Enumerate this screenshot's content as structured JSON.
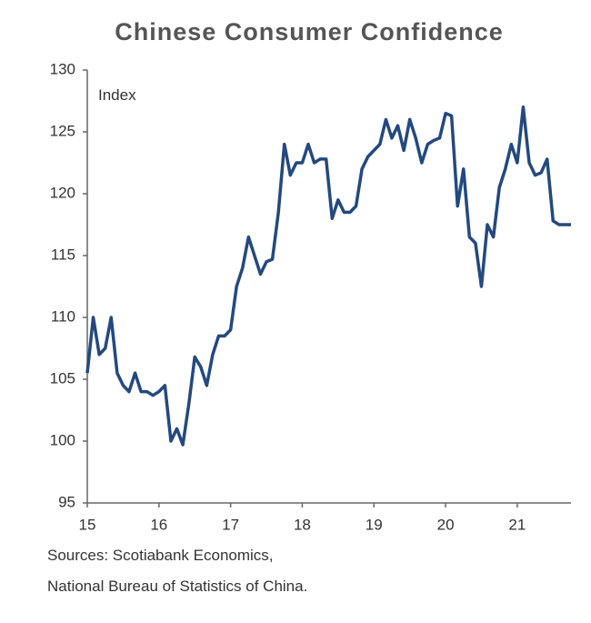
{
  "chart_data": {
    "type": "line",
    "title": "Chinese Consumer Confidence",
    "y_label": "Index",
    "sources": [
      "Sources: Scotiabank Economics,",
      "National Bureau of Statistics of China."
    ],
    "xlim": [
      15,
      21.75
    ],
    "xticks": [
      15,
      16,
      17,
      18,
      19,
      20,
      21
    ],
    "ylim": [
      95,
      130
    ],
    "yticks": [
      95,
      100,
      105,
      110,
      115,
      120,
      125,
      130
    ],
    "grid": false,
    "x": [
      15,
      15.083,
      15.167,
      15.25,
      15.333,
      15.417,
      15.5,
      15.583,
      15.667,
      15.75,
      15.833,
      15.917,
      16,
      16.083,
      16.167,
      16.25,
      16.333,
      16.417,
      16.5,
      16.583,
      16.667,
      16.75,
      16.833,
      16.917,
      17,
      17.083,
      17.167,
      17.25,
      17.333,
      17.417,
      17.5,
      17.583,
      17.667,
      17.75,
      17.833,
      17.917,
      18,
      18.083,
      18.167,
      18.25,
      18.333,
      18.417,
      18.5,
      18.583,
      18.667,
      18.75,
      18.833,
      18.917,
      19,
      19.083,
      19.167,
      19.25,
      19.333,
      19.417,
      19.5,
      19.583,
      19.667,
      19.75,
      19.833,
      19.917,
      20,
      20.083,
      20.167,
      20.25,
      20.333,
      20.417,
      20.5,
      20.583,
      20.667,
      20.75,
      20.833,
      20.917,
      21,
      21.083,
      21.167,
      21.25,
      21.333,
      21.417,
      21.5,
      21.583,
      21.667,
      21.75
    ],
    "series": [
      {
        "name": "Consumer Confidence",
        "color": "#24497f",
        "values": [
          105.5,
          110,
          107,
          107.5,
          110,
          105.5,
          104.5,
          104,
          105.5,
          104,
          104,
          103.7,
          104,
          104.5,
          100,
          101,
          99.7,
          103,
          106.8,
          106,
          104.5,
          107,
          108.5,
          108.5,
          109,
          112.5,
          114,
          116.5,
          115,
          113.5,
          114.5,
          114.7,
          118.5,
          124,
          121.5,
          122.5,
          122.5,
          124,
          122.5,
          122.8,
          122.8,
          118,
          119.5,
          118.5,
          118.5,
          119,
          122,
          123,
          123.5,
          124,
          126,
          124.5,
          125.5,
          123.5,
          126,
          124.5,
          122.5,
          124,
          124.3,
          124.5,
          126.5,
          126.3,
          119,
          122,
          116.5,
          116,
          112.5,
          117.5,
          116.5,
          120.5,
          122,
          124,
          122.5,
          127,
          122.5,
          121.5,
          121.7,
          122.8,
          117.8,
          117.5,
          117.5,
          117.5
        ]
      }
    ]
  }
}
